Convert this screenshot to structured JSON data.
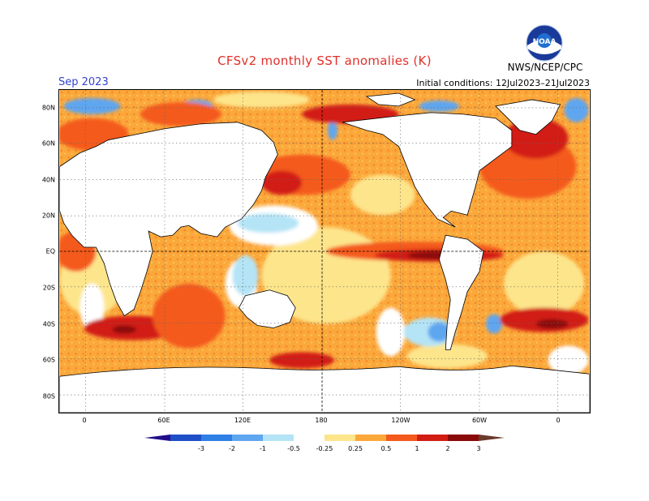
{
  "header": {
    "title": "CFSv2 monthly SST anomalies (K)",
    "month": "Sep 2023",
    "initial_conditions": "Initial conditions: 12Jul2023–21Jul2023",
    "agency": "NWS/NCEP/CPC",
    "logo_text": "NOAA"
  },
  "map": {
    "lat_labels": [
      "80N",
      "60N",
      "40N",
      "20N",
      "EQ",
      "20S",
      "40S",
      "60S",
      "80S"
    ],
    "lon_labels": [
      "0",
      "60E",
      "120E",
      "180",
      "120W",
      "60W",
      "0"
    ],
    "grid": true,
    "reference_lines": [
      "EQ",
      "180"
    ]
  },
  "colorbar": {
    "labels": [
      "-3",
      "-2",
      "-1",
      "-0.5",
      "-0.25",
      "0.25",
      "0.5",
      "1",
      "2",
      "3"
    ],
    "colors": [
      "#220e8c",
      "#1f4fc8",
      "#2e7fe6",
      "#5fa6f0",
      "#b4e4f6",
      "#ffffff",
      "#fde58b",
      "#fba83a",
      "#f45a1c",
      "#d21d14",
      "#8a0a0a",
      "#6a3a2a"
    ]
  },
  "colors": {
    "title": "#e0302a",
    "month": "#3344cc",
    "land": "#ffffff",
    "warm_light": "#fde58b",
    "warm_mid": "#fba83a",
    "warm_strong": "#f45a1c",
    "warm_vstrong": "#d21d14",
    "warm_extreme": "#8a0a0a",
    "cool_light": "#b4e4f6",
    "cool_mid": "#5fa6f0",
    "cool_strong": "#2e7fe6"
  }
}
